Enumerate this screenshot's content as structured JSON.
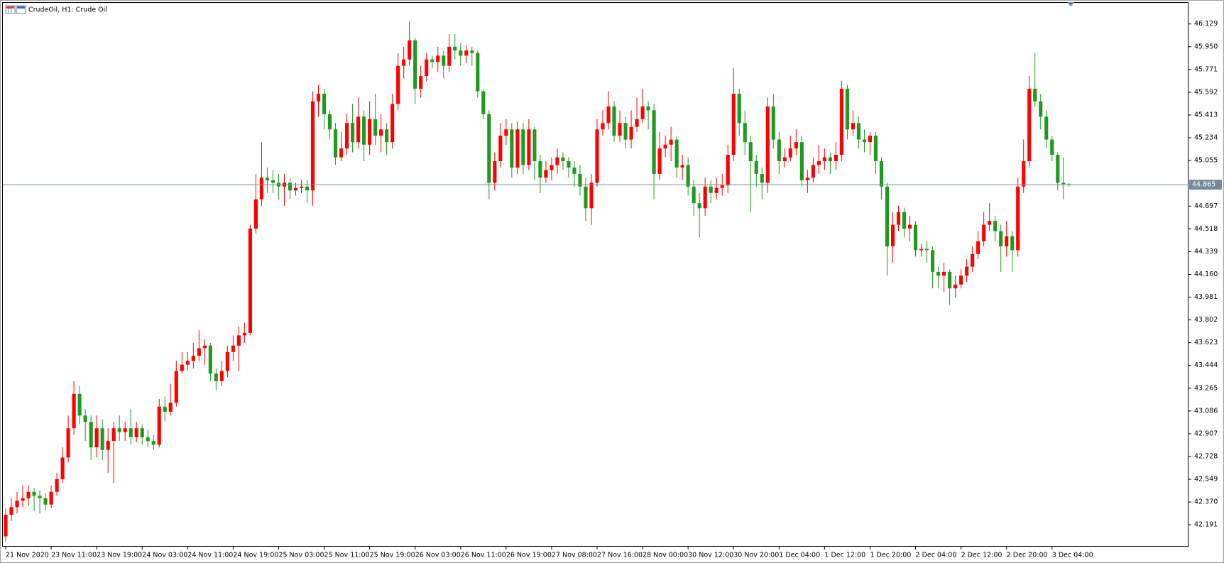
{
  "chart_data": {
    "type": "candlestick",
    "title": "CrudeOil, H1:  Crude Oil",
    "bull_color": "#ff0000",
    "bear_color": "#1f9a1f",
    "current_price": 44.865,
    "ylim": [
      42.019,
      46.295
    ],
    "yticks": [
      46.129,
      {
        "value": 45.95,
        "label": "45.950"
      },
      45.771,
      45.592,
      45.413,
      45.234,
      45.055,
      44.697,
      44.518,
      44.339,
      {
        "value": 44.16,
        "label": "44.160"
      },
      43.981,
      43.802,
      43.623,
      43.444,
      43.265,
      43.086,
      42.907,
      42.728,
      42.549,
      {
        "value": 42.37,
        "label": "42.370"
      },
      42.191
    ],
    "xlim": [
      -0.5,
      208
    ],
    "xticks": [
      {
        "value": 0,
        "label": "21 Nov 2020"
      },
      {
        "value": 8,
        "label": "23 Nov 11:00"
      },
      {
        "value": 16,
        "label": "23 Nov 19:00"
      },
      {
        "value": 24,
        "label": "24 Nov 03:00"
      },
      {
        "value": 32,
        "label": "24 Nov 11:00"
      },
      {
        "value": 40,
        "label": "24 Nov 19:00"
      },
      {
        "value": 48,
        "label": "25 Nov 03:00"
      },
      {
        "value": 56,
        "label": "25 Nov 11:00"
      },
      {
        "value": 64,
        "label": "25 Nov 19:00"
      },
      {
        "value": 72,
        "label": "26 Nov 03:00"
      },
      {
        "value": 80,
        "label": "26 Nov 11:00"
      },
      {
        "value": 88,
        "label": "26 Nov 19:00"
      },
      {
        "value": 96,
        "label": "27 Nov 08:00"
      },
      {
        "value": 104,
        "label": "27 Nov 16:00"
      },
      {
        "value": 112,
        "label": "28 Nov 00:00"
      },
      {
        "value": 120,
        "label": "30 Nov 12:00"
      },
      {
        "value": 128,
        "label": "30 Nov 20:00"
      },
      {
        "value": 136,
        "label": "1 Dec 04:00"
      },
      {
        "value": 144,
        "label": "1 Dec 12:00"
      },
      {
        "value": 152,
        "label": "1 Dec 20:00"
      },
      {
        "value": 160,
        "label": "2 Dec 04:00"
      },
      {
        "value": 168,
        "label": "2 Dec 12:00"
      },
      {
        "value": 176,
        "label": "2 Dec 20:00"
      },
      {
        "value": 184,
        "label": "3 Dec 04:00"
      }
    ],
    "open": [
      42.1,
      42.27,
      42.33,
      42.38,
      42.4,
      42.45,
      42.42,
      42.4,
      42.35,
      42.45,
      42.55,
      42.72,
      42.95,
      43.22,
      43.05,
      43.0,
      42.8,
      42.95,
      42.78,
      42.85,
      42.95,
      42.92,
      42.95,
      42.88,
      42.95,
      42.88,
      42.85,
      42.82,
      43.12,
      43.08,
      43.15,
      43.4,
      43.45,
      43.48,
      43.52,
      43.58,
      43.6,
      43.38,
      43.32,
      43.4,
      43.55,
      43.6,
      43.68,
      43.7,
      44.52,
      44.75,
      44.92,
      44.9,
      44.88,
      44.85,
      44.88,
      44.82,
      44.84,
      44.85,
      44.82,
      45.52,
      45.58,
      45.42,
      45.3,
      45.08,
      45.15,
      45.35,
      45.2,
      45.4,
      45.18,
      45.38,
      45.25,
      45.3,
      45.2,
      45.5,
      45.8,
      45.85,
      46.0,
      45.62,
      45.72,
      45.85,
      45.83,
      45.88,
      45.8,
      45.95,
      45.92,
      45.88,
      45.92,
      45.9,
      45.6,
      45.42,
      44.88,
      45.05,
      45.25,
      45.3,
      45.0,
      45.3,
      45.02,
      45.3,
      45.05,
      44.92,
      44.98,
      45.02,
      45.08,
      45.05,
      45.0,
      44.95,
      44.85,
      44.68,
      44.88,
      45.3,
      45.35,
      45.48,
      45.25,
      45.35,
      45.22,
      45.32,
      45.38,
      45.48,
      45.45,
      44.95,
      45.15,
      45.18,
      45.22,
      45.0,
      45.02,
      44.85,
      44.72,
      44.68,
      44.85,
      44.8,
      44.84,
      44.86,
      45.1,
      45.58,
      45.35,
      45.2,
      45.05,
      44.95,
      44.88,
      45.48,
      45.22,
      45.05,
      45.08,
      45.15,
      45.2,
      44.9,
      44.92,
      45.02,
      45.05,
      45.08,
      45.05,
      45.1,
      45.62,
      45.3,
      45.35,
      45.22,
      45.2,
      45.25,
      45.05,
      44.85,
      44.38,
      44.55,
      44.65,
      44.52,
      44.55,
      44.35,
      44.36,
      44.35,
      44.18,
      44.15,
      44.18,
      44.05,
      44.08,
      44.15,
      44.22,
      44.32,
      44.42,
      44.55,
      44.58,
      44.5,
      44.38,
      44.46,
      44.35,
      44.85,
      45.05,
      45.62,
      45.52,
      45.4,
      45.22,
      45.1,
      44.88,
      44.87
    ],
    "high": [
      42.32,
      42.4,
      42.45,
      42.5,
      42.5,
      42.48,
      42.46,
      42.44,
      42.5,
      42.6,
      42.8,
      43.05,
      43.32,
      43.28,
      43.1,
      43.05,
      43.05,
      43.02,
      42.95,
      43.0,
      43.05,
      43.0,
      43.1,
      43.0,
      42.98,
      42.94,
      42.9,
      43.18,
      43.2,
      43.3,
      43.48,
      43.55,
      43.55,
      43.62,
      43.72,
      43.65,
      43.62,
      43.42,
      43.48,
      43.6,
      43.68,
      43.75,
      43.78,
      44.55,
      44.95,
      45.2,
      45.0,
      44.98,
      44.95,
      44.95,
      44.92,
      44.88,
      44.9,
      44.9,
      45.6,
      45.65,
      45.62,
      45.45,
      45.35,
      45.28,
      45.42,
      45.5,
      45.55,
      45.45,
      45.52,
      45.58,
      45.42,
      45.35,
      45.58,
      45.9,
      45.95,
      46.15,
      46.02,
      45.8,
      45.9,
      45.88,
      45.95,
      45.92,
      46.05,
      46.05,
      45.98,
      45.96,
      45.95,
      45.92,
      45.62,
      45.45,
      45.12,
      45.35,
      45.38,
      45.35,
      45.36,
      45.35,
      45.38,
      45.32,
      45.1,
      45.05,
      45.08,
      45.15,
      45.12,
      45.08,
      45.05,
      45.02,
      44.92,
      44.95,
      45.38,
      45.45,
      45.6,
      45.52,
      45.45,
      45.4,
      45.45,
      45.55,
      45.62,
      45.52,
      45.5,
      45.28,
      45.25,
      45.32,
      45.25,
      45.1,
      45.08,
      44.9,
      44.8,
      44.92,
      44.9,
      44.92,
      44.95,
      45.18,
      45.78,
      45.62,
      45.45,
      45.25,
      45.1,
      45.0,
      45.55,
      45.58,
      45.28,
      45.15,
      45.25,
      45.3,
      45.25,
      44.98,
      45.08,
      45.18,
      45.15,
      45.12,
      45.2,
      45.68,
      45.65,
      45.45,
      45.4,
      45.3,
      45.28,
      45.28,
      45.08,
      44.88,
      44.65,
      44.7,
      44.68,
      44.62,
      44.58,
      44.4,
      44.42,
      44.38,
      44.22,
      44.25,
      44.2,
      44.15,
      44.2,
      44.28,
      44.38,
      44.5,
      44.65,
      44.72,
      44.62,
      44.55,
      44.58,
      44.5,
      44.92,
      45.22,
      45.72,
      45.9,
      45.58,
      45.45,
      45.25,
      45.12,
      45.08,
      44.88
    ],
    "low": [
      42.06,
      42.22,
      42.28,
      42.33,
      42.34,
      42.3,
      42.28,
      42.3,
      42.32,
      42.42,
      42.52,
      42.68,
      42.9,
      42.98,
      42.85,
      42.7,
      42.72,
      42.7,
      42.6,
      42.52,
      42.85,
      42.85,
      42.82,
      42.84,
      42.82,
      42.8,
      42.78,
      42.8,
      43.0,
      43.05,
      43.12,
      43.38,
      43.4,
      43.42,
      43.48,
      43.45,
      43.32,
      43.25,
      43.28,
      43.35,
      43.48,
      43.4,
      43.62,
      43.68,
      44.48,
      44.7,
      44.8,
      44.8,
      44.75,
      44.7,
      44.75,
      44.78,
      44.8,
      44.72,
      44.7,
      45.4,
      45.3,
      45.22,
      45.02,
      45.05,
      45.1,
      45.12,
      45.15,
      45.05,
      45.1,
      45.18,
      45.12,
      45.1,
      45.15,
      45.45,
      45.7,
      45.8,
      45.5,
      45.55,
      45.68,
      45.78,
      45.75,
      45.7,
      45.75,
      45.85,
      45.8,
      45.82,
      45.8,
      45.55,
      45.38,
      44.75,
      44.82,
      45.0,
      45.18,
      44.92,
      44.95,
      44.95,
      44.98,
      44.9,
      44.8,
      44.88,
      44.9,
      44.95,
      44.98,
      44.92,
      44.85,
      44.78,
      44.58,
      44.55,
      44.85,
      45.25,
      45.3,
      45.2,
      45.2,
      45.15,
      45.15,
      45.28,
      45.35,
      45.3,
      44.75,
      44.9,
      45.08,
      45.05,
      44.92,
      44.9,
      44.78,
      44.62,
      44.45,
      44.62,
      44.72,
      44.75,
      44.78,
      44.8,
      45.05,
      45.25,
      45.1,
      44.65,
      44.85,
      44.75,
      44.8,
      45.15,
      44.95,
      45.0,
      45.05,
      45.1,
      44.85,
      44.8,
      44.88,
      44.95,
      44.98,
      44.95,
      44.98,
      45.05,
      45.22,
      45.25,
      45.15,
      45.12,
      45.1,
      44.95,
      44.75,
      44.15,
      44.25,
      44.5,
      44.45,
      44.42,
      44.3,
      44.3,
      44.25,
      44.05,
      44.05,
      44.02,
      43.92,
      43.98,
      44.05,
      44.1,
      44.18,
      44.28,
      44.38,
      44.5,
      44.42,
      44.18,
      44.3,
      44.18,
      44.3,
      44.8,
      45.0,
      45.48,
      45.3,
      45.15,
      45.05,
      44.82,
      44.75,
      44.85
    ],
    "close": [
      42.27,
      42.33,
      42.38,
      42.4,
      42.45,
      42.42,
      42.4,
      42.35,
      42.45,
      42.55,
      42.72,
      42.95,
      43.22,
      43.05,
      43.0,
      42.8,
      42.95,
      42.78,
      42.85,
      42.95,
      42.92,
      42.95,
      42.88,
      42.95,
      42.88,
      42.85,
      42.82,
      43.12,
      43.08,
      43.15,
      43.4,
      43.45,
      43.48,
      43.52,
      43.58,
      43.6,
      43.38,
      43.32,
      43.4,
      43.55,
      43.6,
      43.68,
      43.7,
      44.52,
      44.75,
      44.92,
      44.9,
      44.88,
      44.85,
      44.88,
      44.82,
      44.84,
      44.85,
      44.82,
      45.52,
      45.58,
      45.42,
      45.3,
      45.08,
      45.15,
      45.35,
      45.2,
      45.4,
      45.18,
      45.38,
      45.25,
      45.3,
      45.2,
      45.5,
      45.8,
      45.85,
      46.0,
      45.62,
      45.72,
      45.85,
      45.83,
      45.88,
      45.8,
      45.95,
      45.92,
      45.88,
      45.92,
      45.9,
      45.6,
      45.42,
      44.88,
      45.05,
      45.25,
      45.3,
      45.0,
      45.3,
      45.02,
      45.3,
      45.05,
      44.92,
      44.98,
      45.02,
      45.08,
      45.05,
      45.0,
      44.95,
      44.85,
      44.68,
      44.88,
      45.3,
      45.35,
      45.48,
      45.25,
      45.35,
      45.22,
      45.32,
      45.38,
      45.48,
      45.45,
      44.95,
      45.15,
      45.18,
      45.22,
      45.0,
      45.02,
      44.85,
      44.72,
      44.68,
      44.85,
      44.8,
      44.84,
      44.86,
      45.1,
      45.58,
      45.35,
      45.2,
      45.05,
      44.95,
      44.88,
      45.48,
      45.22,
      45.05,
      45.08,
      45.15,
      45.2,
      44.9,
      44.92,
      45.02,
      45.05,
      45.08,
      45.05,
      45.1,
      45.62,
      45.3,
      45.35,
      45.22,
      45.2,
      45.25,
      45.05,
      44.85,
      44.38,
      44.55,
      44.65,
      44.52,
      44.55,
      44.35,
      44.36,
      44.35,
      44.18,
      44.15,
      44.18,
      44.05,
      44.08,
      44.15,
      44.22,
      44.32,
      44.42,
      44.55,
      44.58,
      44.5,
      44.38,
      44.46,
      44.35,
      44.85,
      45.05,
      45.62,
      45.52,
      45.4,
      45.22,
      45.1,
      44.88,
      44.87,
      44.865
    ]
  }
}
